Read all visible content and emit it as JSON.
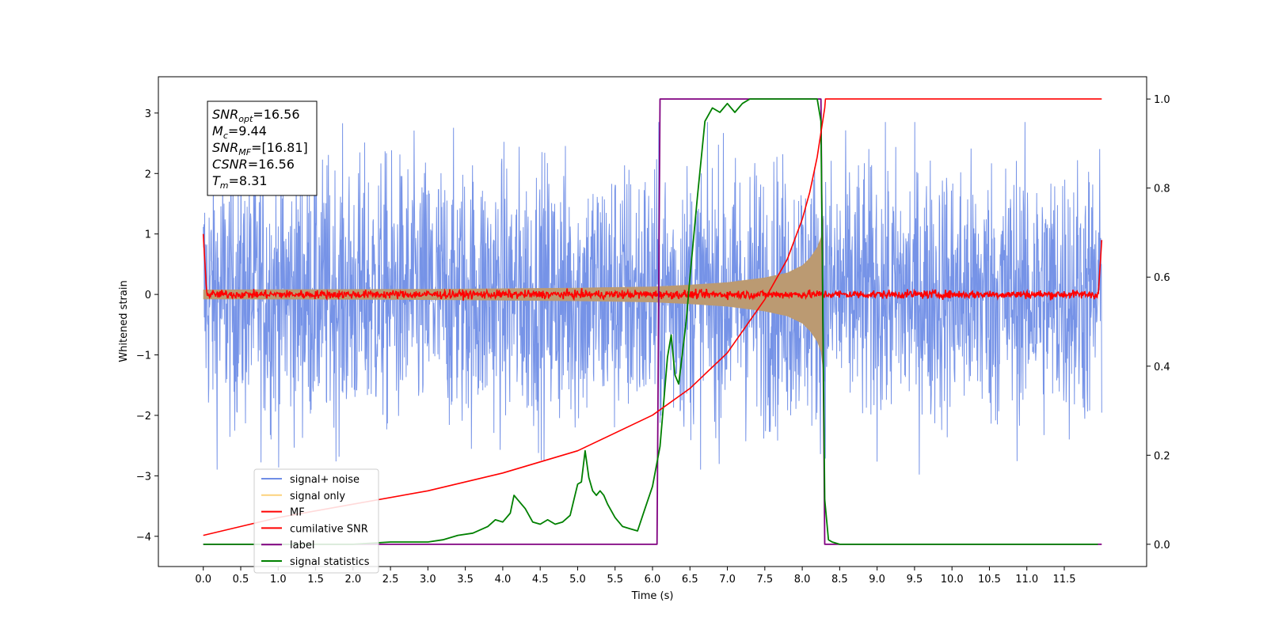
{
  "chart_data": {
    "type": "line",
    "title": "",
    "xlabel": "Time (s)",
    "ylabel": "Whitened strain",
    "xlim": [
      -0.6,
      12.6
    ],
    "ylim": [
      -4.5,
      3.6
    ],
    "ylim_right": [
      -0.05,
      1.05
    ],
    "xticks": [
      "0.0",
      "0.5",
      "1.0",
      "1.5",
      "2.0",
      "2.5",
      "3.0",
      "3.5",
      "4.0",
      "4.5",
      "5.0",
      "5.5",
      "6.0",
      "6.5",
      "7.0",
      "7.5",
      "8.0",
      "8.5",
      "9.0",
      "9.5",
      "10.0",
      "10.5",
      "11.0",
      "11.5"
    ],
    "yticks": [
      "3",
      "2",
      "1",
      "0",
      "−1",
      "−2",
      "−3",
      "−4"
    ],
    "yticks_right": [
      "1.0",
      "0.8",
      "0.6",
      "0.4",
      "0.2",
      "0.0"
    ],
    "grid": false,
    "legend_position": "lower-left",
    "series": [
      {
        "name": "signal+ noise",
        "axis": "left",
        "color": "#6f8de6",
        "style": "noise band",
        "x_range": [
          0.0,
          12.0
        ],
        "typical_amplitude": 1.8,
        "extremes": [
          -3.3,
          2.9
        ]
      },
      {
        "name": "signal only",
        "axis": "left",
        "color": "#fcd27c",
        "style": "chirp envelope",
        "x": [
          0.0,
          3.0,
          5.0,
          6.0,
          6.5,
          7.0,
          7.5,
          7.8,
          8.0,
          8.1,
          8.2,
          8.25,
          8.28
        ],
        "envelope": [
          0.08,
          0.09,
          0.11,
          0.13,
          0.16,
          0.2,
          0.28,
          0.36,
          0.48,
          0.6,
          0.78,
          0.95,
          1.3
        ]
      },
      {
        "name": "MF",
        "axis": "left",
        "color": "#ff0000",
        "style": "noise band",
        "x_range": [
          0.0,
          12.0
        ],
        "typical_amplitude": 0.1,
        "end_values": [
          1.0,
          0.9
        ]
      },
      {
        "name": "cumilative SNR",
        "axis": "right",
        "color": "#ff0000",
        "x": [
          0.0,
          0.5,
          1.0,
          2.0,
          3.0,
          4.0,
          5.0,
          6.0,
          6.5,
          7.0,
          7.5,
          7.8,
          8.0,
          8.1,
          8.2,
          8.3,
          8.31,
          12.0
        ],
        "y": [
          0.02,
          0.04,
          0.06,
          0.09,
          0.12,
          0.16,
          0.21,
          0.29,
          0.35,
          0.43,
          0.55,
          0.64,
          0.73,
          0.79,
          0.87,
          0.98,
          1.0,
          1.0
        ]
      },
      {
        "name": "label",
        "axis": "right",
        "color": "#800080",
        "x": [
          0.0,
          6.06,
          6.1,
          8.25,
          8.3,
          12.0
        ],
        "y": [
          0.0,
          0.0,
          1.0,
          1.0,
          0.0,
          0.0
        ]
      },
      {
        "name": "signal statistics",
        "axis": "right",
        "color": "#008000",
        "x": [
          0.0,
          1.0,
          2.0,
          2.5,
          3.0,
          3.2,
          3.4,
          3.6,
          3.8,
          3.9,
          4.0,
          4.1,
          4.15,
          4.2,
          4.3,
          4.4,
          4.5,
          4.6,
          4.7,
          4.8,
          4.9,
          5.0,
          5.05,
          5.1,
          5.15,
          5.2,
          5.25,
          5.3,
          5.35,
          5.4,
          5.5,
          5.6,
          5.7,
          5.8,
          5.9,
          6.0,
          6.1,
          6.2,
          6.25,
          6.3,
          6.35,
          6.4,
          6.45,
          6.5,
          6.6,
          6.7,
          6.8,
          6.9,
          7.0,
          7.1,
          7.2,
          7.3,
          7.5,
          7.8,
          8.0,
          8.2,
          8.25,
          8.3,
          8.35,
          8.4,
          8.5,
          9.0,
          10.0,
          11.0,
          11.95
        ],
        "y": [
          0.0,
          0.0,
          0.0,
          0.005,
          0.005,
          0.01,
          0.02,
          0.025,
          0.04,
          0.055,
          0.05,
          0.07,
          0.11,
          0.1,
          0.08,
          0.05,
          0.045,
          0.055,
          0.045,
          0.05,
          0.065,
          0.135,
          0.14,
          0.21,
          0.15,
          0.12,
          0.11,
          0.12,
          0.11,
          0.09,
          0.06,
          0.04,
          0.035,
          0.03,
          0.08,
          0.13,
          0.22,
          0.42,
          0.47,
          0.38,
          0.36,
          0.43,
          0.5,
          0.6,
          0.78,
          0.95,
          0.98,
          0.97,
          0.99,
          0.97,
          0.99,
          1.0,
          1.0,
          1.0,
          1.0,
          1.0,
          0.95,
          0.1,
          0.01,
          0.005,
          0.0,
          0.0,
          0.0,
          0.0,
          0.0
        ]
      }
    ],
    "annotations": [
      {
        "var": "SNR",
        "sub": "opt",
        "value": "=16.56"
      },
      {
        "var": "M",
        "sub": "c",
        "value": "=9.44"
      },
      {
        "var": "SNR",
        "sub": "MF",
        "value": "=[16.81]"
      },
      {
        "var": "CSNR",
        "sub": "",
        "value": "=16.56"
      },
      {
        "var": "T",
        "sub": "m",
        "value": "=8.31"
      }
    ]
  }
}
